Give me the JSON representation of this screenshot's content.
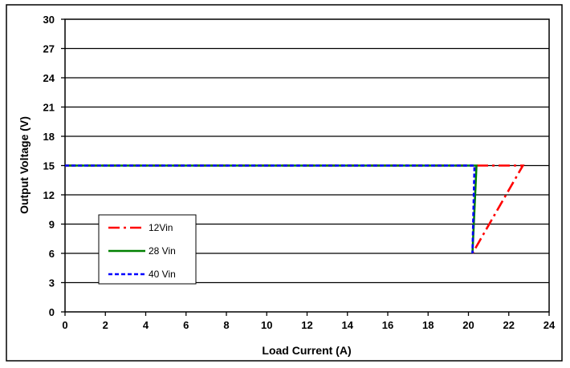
{
  "chart_data": {
    "type": "line",
    "title": "",
    "xlabel": "Load Current (A)",
    "ylabel": "Output Voltage (V)",
    "xlim": [
      0,
      24
    ],
    "ylim": [
      0,
      30
    ],
    "xticks": [
      0,
      2,
      4,
      6,
      8,
      10,
      12,
      14,
      16,
      18,
      20,
      22,
      24
    ],
    "yticks": [
      0,
      3,
      6,
      9,
      12,
      15,
      18,
      21,
      24,
      27,
      30
    ],
    "grid": "horizontal",
    "legend_position": "lower-left",
    "series": [
      {
        "name": "12Vin",
        "color": "#ff0000",
        "dash": "dash-dot",
        "points": [
          [
            0,
            15
          ],
          [
            22.7,
            15
          ],
          [
            20.2,
            6
          ]
        ]
      },
      {
        "name": "28 Vin",
        "color": "#008000",
        "dash": "solid",
        "points": [
          [
            0,
            15
          ],
          [
            20.4,
            15
          ],
          [
            20.2,
            6
          ]
        ]
      },
      {
        "name": "40 Vin",
        "color": "#0000ff",
        "dash": "dashed",
        "points": [
          [
            0,
            15
          ],
          [
            20.3,
            15
          ],
          [
            20.2,
            6
          ]
        ]
      }
    ]
  }
}
